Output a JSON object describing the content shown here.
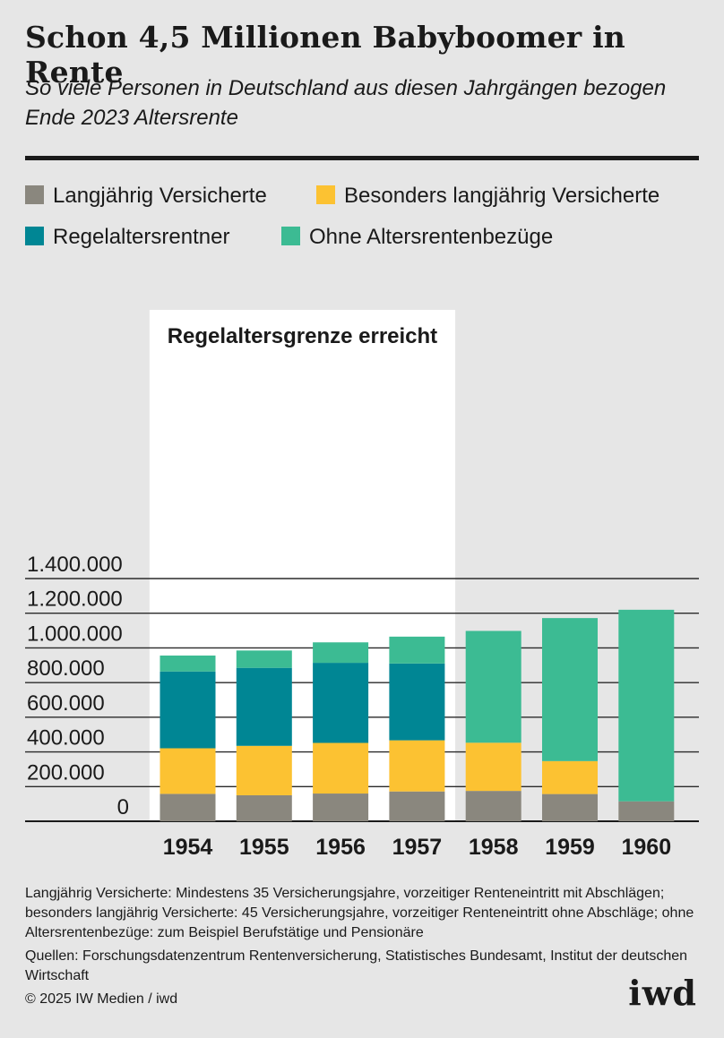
{
  "header": {
    "title": "Schon 4,5 Millionen Babyboomer in Rente",
    "subtitle": "So viele Personen in Deutschland aus diesen Jahrgängen bezogen Ende 2023 Altersrente"
  },
  "legend": [
    {
      "label": "Langjährig Versicherte",
      "color": "#8a877e"
    },
    {
      "label": "Besonders langjährig Versicherte",
      "color": "#fcc232"
    },
    {
      "label": "Regelaltersrentner",
      "color": "#008694"
    },
    {
      "label": "Ohne Altersrentenbezüge",
      "color": "#3cbb93"
    }
  ],
  "chart_data": {
    "type": "bar",
    "stacked": true,
    "categories": [
      "1954",
      "1955",
      "1956",
      "1957",
      "1958",
      "1959",
      "1960"
    ],
    "series": [
      {
        "name": "Langjährig Versicherte",
        "color": "#8a877e",
        "values": [
          158000,
          150000,
          160000,
          172000,
          175000,
          157000,
          115000
        ]
      },
      {
        "name": "Besonders langjährig Versicherte",
        "color": "#fcc232",
        "values": [
          263000,
          285000,
          292000,
          295000,
          278000,
          190000,
          0
        ]
      },
      {
        "name": "Regelaltersrentner",
        "color": "#008694",
        "values": [
          443000,
          450000,
          462000,
          443000,
          0,
          0,
          0
        ]
      },
      {
        "name": "Ohne Altersrentenbezüge",
        "color": "#3cbb93",
        "values": [
          92000,
          100000,
          118000,
          155000,
          645000,
          825000,
          1105000
        ]
      }
    ],
    "ylim": [
      0,
      1400000
    ],
    "yticks": [
      0,
      200000,
      400000,
      600000,
      800000,
      1000000,
      1200000,
      1400000
    ],
    "ytick_labels": [
      "0",
      "200.000",
      "400.000",
      "600.000",
      "800.000",
      "1.000.000",
      "1.200.000",
      "1.400.000"
    ],
    "grid": true,
    "highlight": {
      "label": "Regelaltersgrenze erreicht",
      "categories": [
        "1954",
        "1955",
        "1956",
        "1957"
      ]
    }
  },
  "notes": {
    "definitions": "Langjährig Versicherte: Mindestens 35 Versicherungsjahre, vorzeitiger Renteneintritt mit Abschlägen; besonders langjährig Versicherte: 45 Versicherungsjahre, vorzeitiger Renteneintritt ohne Abschläge; ohne Altersrentenbezüge: zum Beispiel Berufstätige und Pensionäre",
    "sources": "Quellen: Forschungsdatenzentrum Rentenversicherung, Statistisches Bundesamt, Institut der deutschen Wirtschaft",
    "copyright": "© 2025 IW Medien / iwd"
  },
  "brand": {
    "logo": "iwd"
  }
}
